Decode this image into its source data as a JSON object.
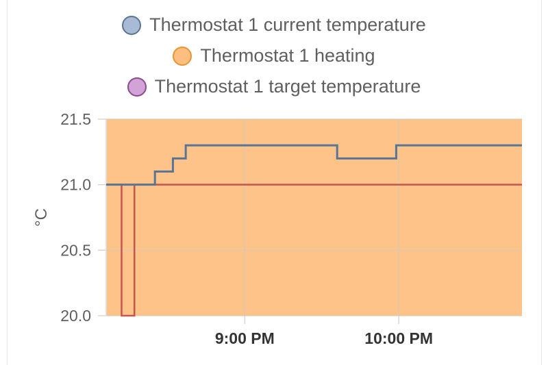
{
  "legend": [
    {
      "label": "Thermostat 1 current temperature",
      "color": "#a7bbd4",
      "border": "#5a7494"
    },
    {
      "label": "Thermostat 1 heating",
      "color": "#fdbe7f",
      "border": "#e89433"
    },
    {
      "label": "Thermostat 1 target temperature",
      "color": "#d2a3d6",
      "border": "#8b4c8f"
    }
  ],
  "chart_data": {
    "type": "line",
    "xlabel": "",
    "ylabel": "°C",
    "ylim": [
      20.0,
      21.5
    ],
    "yticks": [
      20.0,
      20.5,
      21.0,
      21.5
    ],
    "ytick_labels": [
      "20.0",
      "20.5",
      "21.0",
      "21.5"
    ],
    "xlim": [
      "8:06 PM",
      "10:48 PM"
    ],
    "xticks": [
      "9:00 PM",
      "10:00 PM"
    ],
    "grid": true,
    "legend_position": "top",
    "series": [
      {
        "name": "Thermostat 1 current temperature",
        "color": "#5a7494",
        "step": true,
        "x": [
          "8:06 PM",
          "8:25 PM",
          "8:32 PM",
          "8:37 PM",
          "9:36 PM",
          "9:59 PM",
          "10:48 PM"
        ],
        "y": [
          21.0,
          21.1,
          21.2,
          21.3,
          21.2,
          21.3,
          21.3
        ]
      },
      {
        "name": "Thermostat 1 heating",
        "color": "#fdbe7f",
        "area": true,
        "note_value": "heating on for entire visible range"
      },
      {
        "name": "Thermostat 1 target temperature",
        "color": "#c8544e",
        "step": true,
        "x": [
          "8:06 PM",
          "8:12 PM",
          "8:17 PM",
          "10:48 PM"
        ],
        "y": [
          21.0,
          20.0,
          21.0,
          21.0
        ]
      }
    ]
  }
}
